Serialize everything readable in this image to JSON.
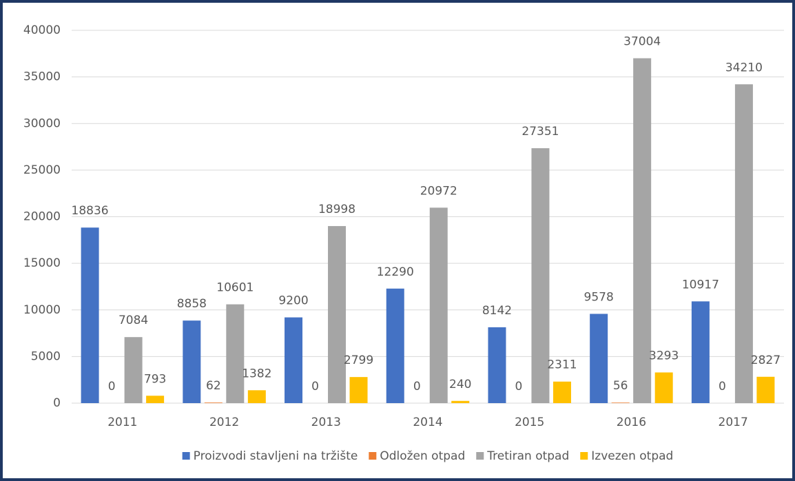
{
  "chart_data": {
    "type": "bar",
    "categories": [
      "2011",
      "2012",
      "2013",
      "2014",
      "2015",
      "2016",
      "2017"
    ],
    "series": [
      {
        "name": "Proizvodi stavljeni na tržište",
        "color": "#4472c4",
        "values": [
          18836,
          8858,
          9200,
          12290,
          8142,
          9578,
          10917
        ]
      },
      {
        "name": "Odložen otpad",
        "color": "#ed7d31",
        "values": [
          0,
          62,
          0,
          0,
          0,
          56,
          0
        ]
      },
      {
        "name": "Tretiran otpad",
        "color": "#a5a5a5",
        "values": [
          7084,
          10601,
          18998,
          20972,
          27351,
          37004,
          34210
        ]
      },
      {
        "name": "Izvezen otpad",
        "color": "#ffc000",
        "values": [
          793,
          1382,
          2799,
          240,
          2311,
          3293,
          2827
        ]
      }
    ],
    "ylim": [
      0,
      40000
    ],
    "yticks": [
      0,
      5000,
      10000,
      15000,
      20000,
      25000,
      30000,
      35000,
      40000
    ],
    "grid": true,
    "legend": "bottom"
  }
}
